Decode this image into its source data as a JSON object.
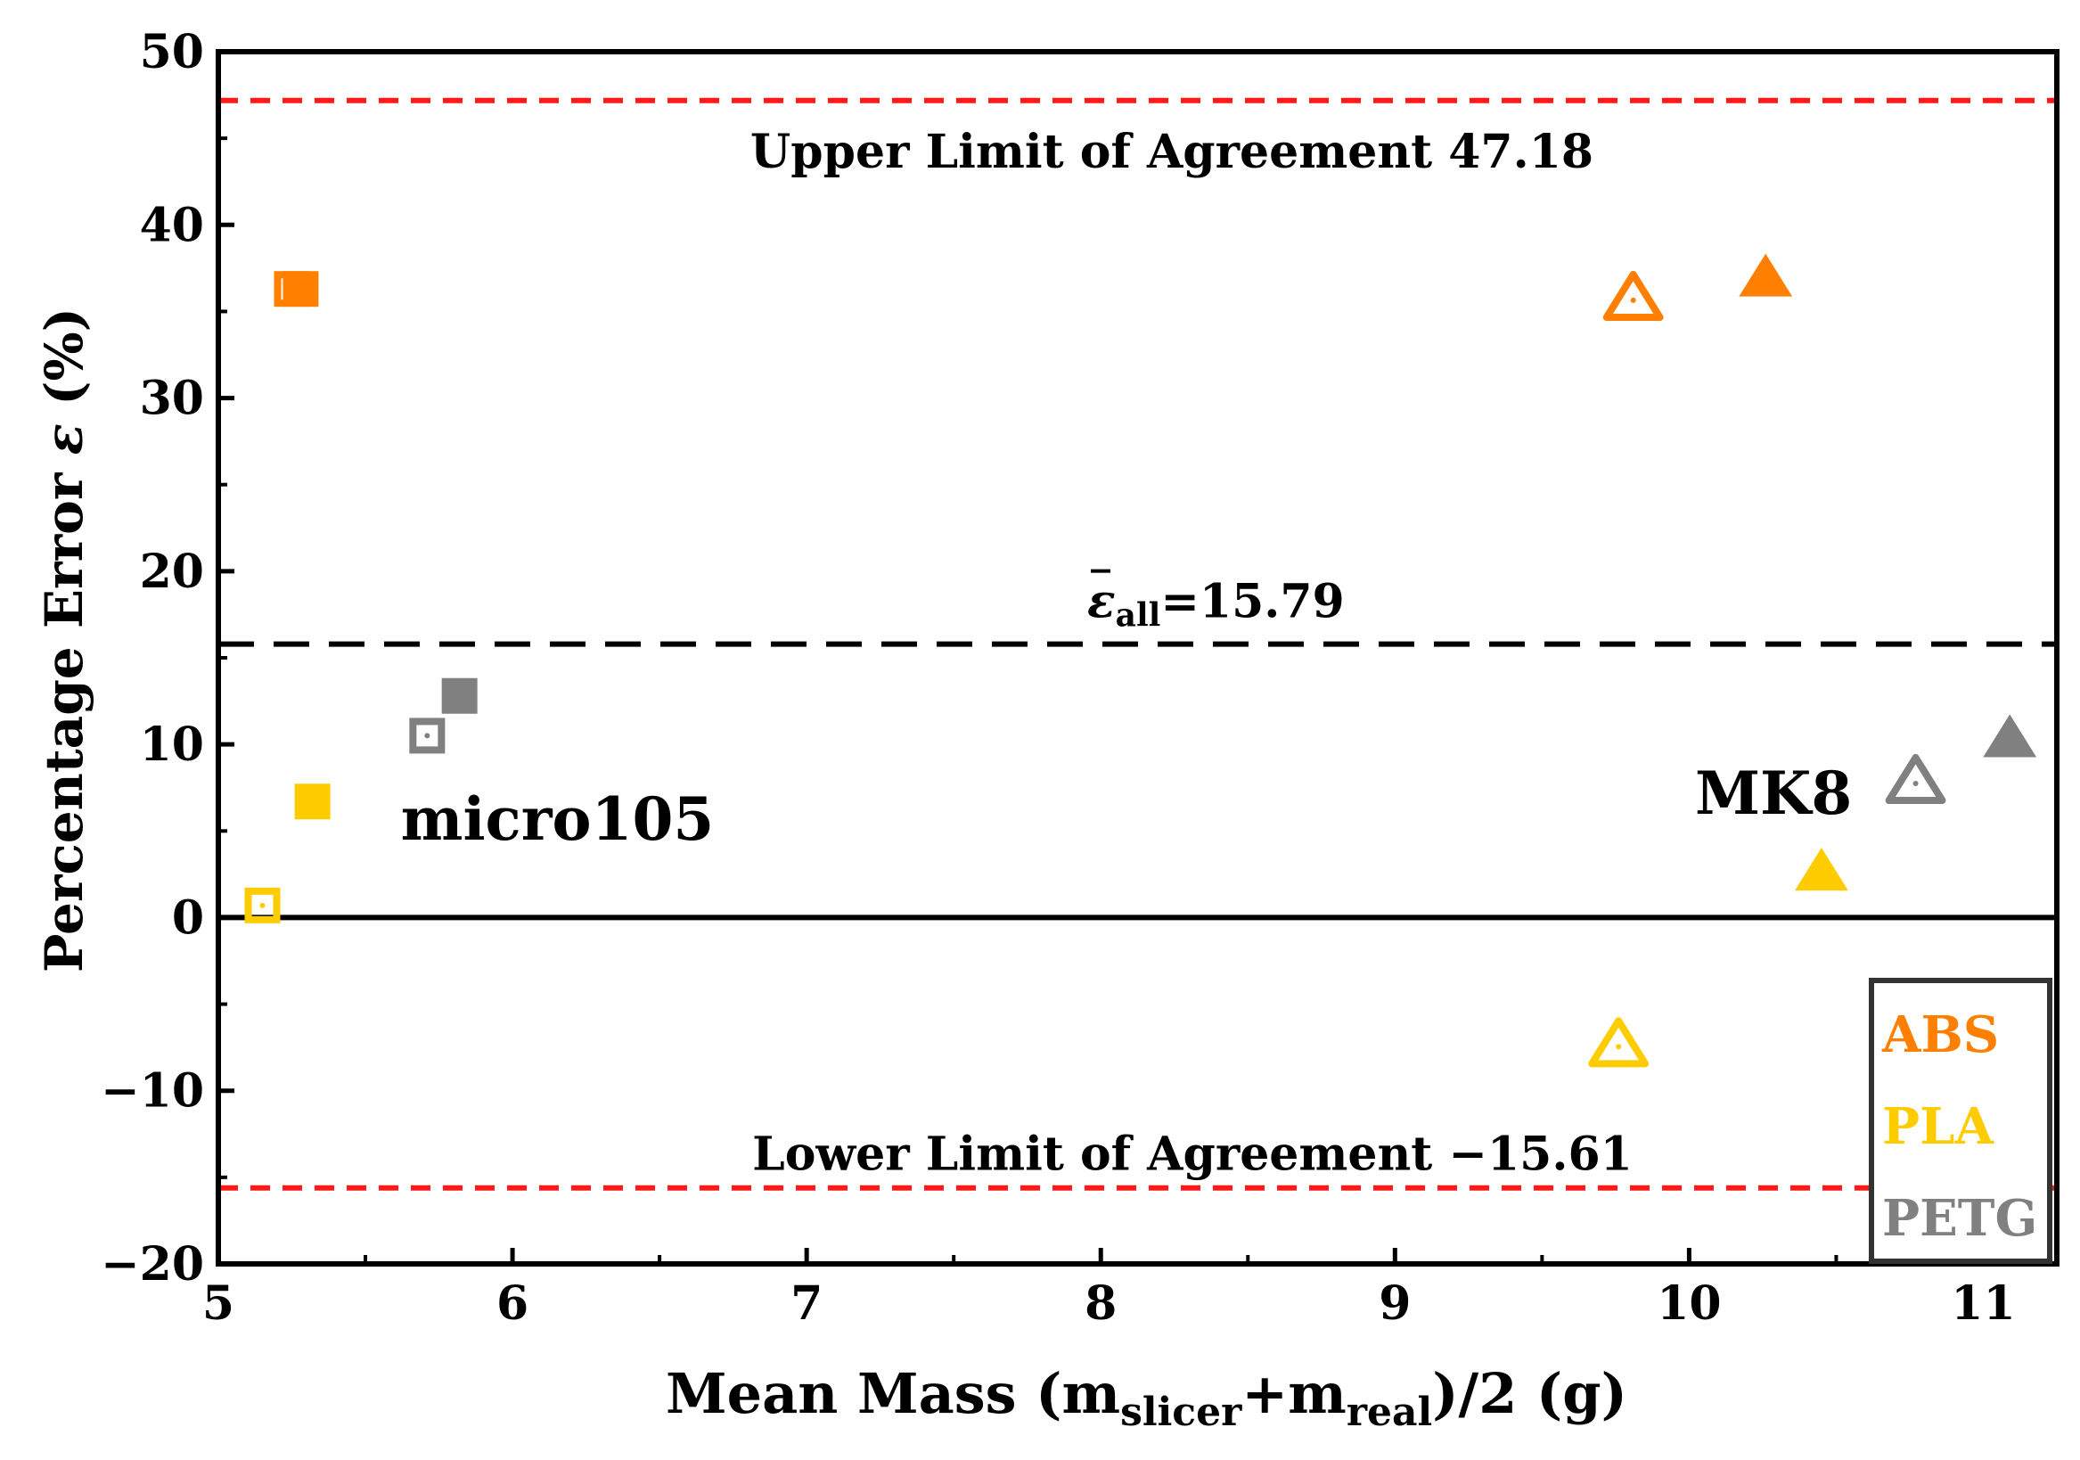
{
  "chart_data": {
    "type": "scatter",
    "xlabel": {
      "main": "Mean Mass (m",
      "sub1": "slicer",
      "mid": "+m",
      "sub2": "real",
      "end": ")/2 (g)"
    },
    "ylabel": {
      "main": "Percentage Error ",
      "symbol": "ε",
      "end": " (%)"
    },
    "xlim": [
      5,
      11.25
    ],
    "ylim": [
      -20,
      50
    ],
    "xticks": [
      5,
      6,
      7,
      8,
      9,
      10,
      11
    ],
    "yticks": [
      -20,
      -10,
      0,
      10,
      20,
      30,
      40,
      50
    ],
    "xtick_labels": [
      "5",
      "6",
      "7",
      "8",
      "9",
      "10",
      "11"
    ],
    "ytick_labels": [
      "−20",
      "−10",
      "0",
      "10",
      "20",
      "30",
      "40",
      "50"
    ],
    "reference_lines": [
      {
        "y": 47.18,
        "style": "dashed",
        "color": "#ff1a1a",
        "label": "Upper Limit of Agreement 47.18"
      },
      {
        "y": 15.79,
        "style": "dashed",
        "color": "#000000",
        "label_symbol": "ε",
        "label_sub": "all",
        "label_rest": "=15.79"
      },
      {
        "y": 0,
        "style": "solid",
        "color": "#000000"
      },
      {
        "y": -15.61,
        "style": "dashed",
        "color": "#ff1a1a",
        "label": "Lower Limit of Agreement −15.61"
      }
    ],
    "group_labels": [
      {
        "text": "micro105",
        "x": 5.62,
        "y": 4.5
      },
      {
        "text": "MK8",
        "x": 10.02,
        "y": 6.0
      }
    ],
    "series": [
      {
        "name": "ABS",
        "color": "#ff8000",
        "points": [
          {
            "x": 5.25,
            "y": 36.3,
            "marker": "square",
            "filled": false
          },
          {
            "x": 5.28,
            "y": 36.3,
            "marker": "square",
            "filled": true
          },
          {
            "x": 9.81,
            "y": 35.8,
            "marker": "triangle",
            "filled": false
          },
          {
            "x": 10.26,
            "y": 37.0,
            "marker": "triangle",
            "filled": true
          }
        ]
      },
      {
        "name": "PLA",
        "color": "#ffcc00",
        "points": [
          {
            "x": 5.15,
            "y": 0.7,
            "marker": "square",
            "filled": false
          },
          {
            "x": 5.32,
            "y": 6.7,
            "marker": "square",
            "filled": true
          },
          {
            "x": 9.76,
            "y": -7.3,
            "marker": "triangle",
            "filled": false
          },
          {
            "x": 10.45,
            "y": 2.7,
            "marker": "triangle",
            "filled": true
          }
        ]
      },
      {
        "name": "PETG",
        "color": "#808080",
        "points": [
          {
            "x": 5.71,
            "y": 10.5,
            "marker": "square",
            "filled": false
          },
          {
            "x": 5.82,
            "y": 12.8,
            "marker": "square",
            "filled": true
          },
          {
            "x": 10.77,
            "y": 7.9,
            "marker": "triangle",
            "filled": false
          },
          {
            "x": 11.09,
            "y": 10.4,
            "marker": "triangle",
            "filled": true
          }
        ]
      }
    ],
    "legend": {
      "position": "bottom-right",
      "entries": [
        "ABS",
        "PLA",
        "PETG"
      ]
    }
  }
}
